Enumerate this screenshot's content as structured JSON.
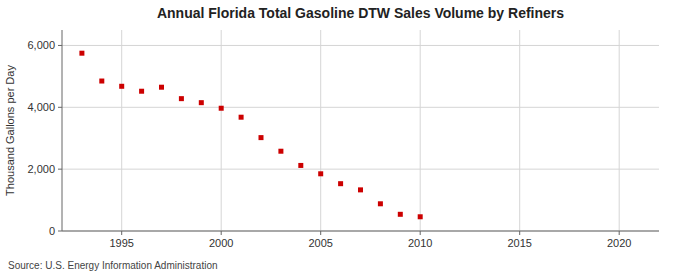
{
  "chart_data": {
    "type": "scatter",
    "title": "Annual Florida Total Gasoline DTW Sales Volume by Refiners",
    "ylabel": "Thousand Gallons per Day",
    "annotation": "Source: U.S. Energy Information Administration",
    "x": [
      1993,
      1994,
      1995,
      1996,
      1997,
      1998,
      1999,
      2000,
      2001,
      2002,
      2003,
      2004,
      2005,
      2006,
      2007,
      2008,
      2009,
      2010
    ],
    "values": [
      5750,
      4850,
      4680,
      4520,
      4650,
      4280,
      4150,
      3970,
      3680,
      3020,
      2580,
      2120,
      1850,
      1530,
      1330,
      880,
      540,
      460
    ],
    "color": "#cc0000",
    "marker": "square",
    "xlim": [
      1992,
      2022
    ],
    "ylim": [
      0,
      6500
    ],
    "xticks": [
      1995,
      2000,
      2005,
      2010,
      2015,
      2020
    ],
    "yticks": [
      0,
      {
        "value": 2000,
        "label": "2,000"
      },
      {
        "value": 4000,
        "label": "4,000"
      },
      {
        "value": 6000,
        "label": "6,000"
      }
    ],
    "grid": true
  }
}
